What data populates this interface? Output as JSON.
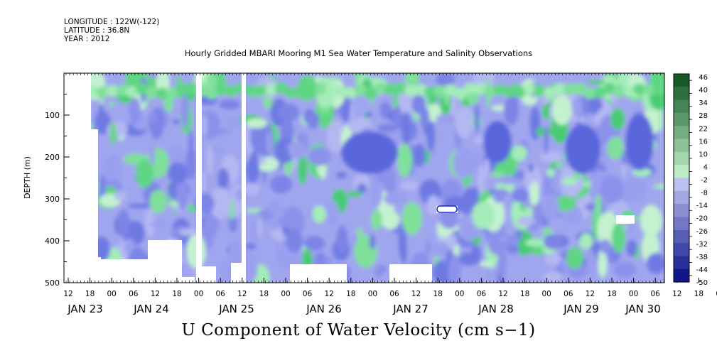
{
  "header": {
    "longitude": "LONGITUDE : 122W(-122)",
    "latitude": "LATITUDE : 36.8N",
    "year": "YEAR : 2012"
  },
  "chart_data": {
    "type": "heatmap",
    "title": "Hourly Gridded MBARI Mooring M1 Sea Water Temperature and Salinity Observations",
    "variable_label": "U Component of Water Velocity (cm s−1)",
    "ylabel": "DEPTH (m)",
    "y_reversed": true,
    "ylim": [
      0,
      500
    ],
    "y_ticks": [
      100,
      200,
      300,
      400,
      500
    ],
    "x_hour_ticks": [
      "12",
      "18",
      "00",
      "06",
      "12",
      "18",
      "00",
      "06",
      "12",
      "18",
      "00",
      "06",
      "12",
      "18",
      "00",
      "06",
      "12",
      "18",
      "00",
      "06",
      "12",
      "18",
      "00",
      "06",
      "12",
      "18",
      "00",
      "06",
      "12",
      "18",
      "00",
      "06"
    ],
    "x_day_labels": [
      "JAN 23",
      "JAN 24",
      "JAN 25",
      "JAN 26",
      "JAN 27",
      "JAN 28",
      "JAN 29",
      "JAN 30"
    ],
    "color_scale": {
      "tick_labels": [
        "46",
        "40",
        "34",
        "28",
        "22",
        "16",
        "10",
        "4",
        "-2",
        "-8",
        "-14",
        "-20",
        "-26",
        "-32",
        "-38",
        "-44",
        "-50"
      ],
      "min": -50,
      "max": 46
    },
    "description_note": ""
  }
}
